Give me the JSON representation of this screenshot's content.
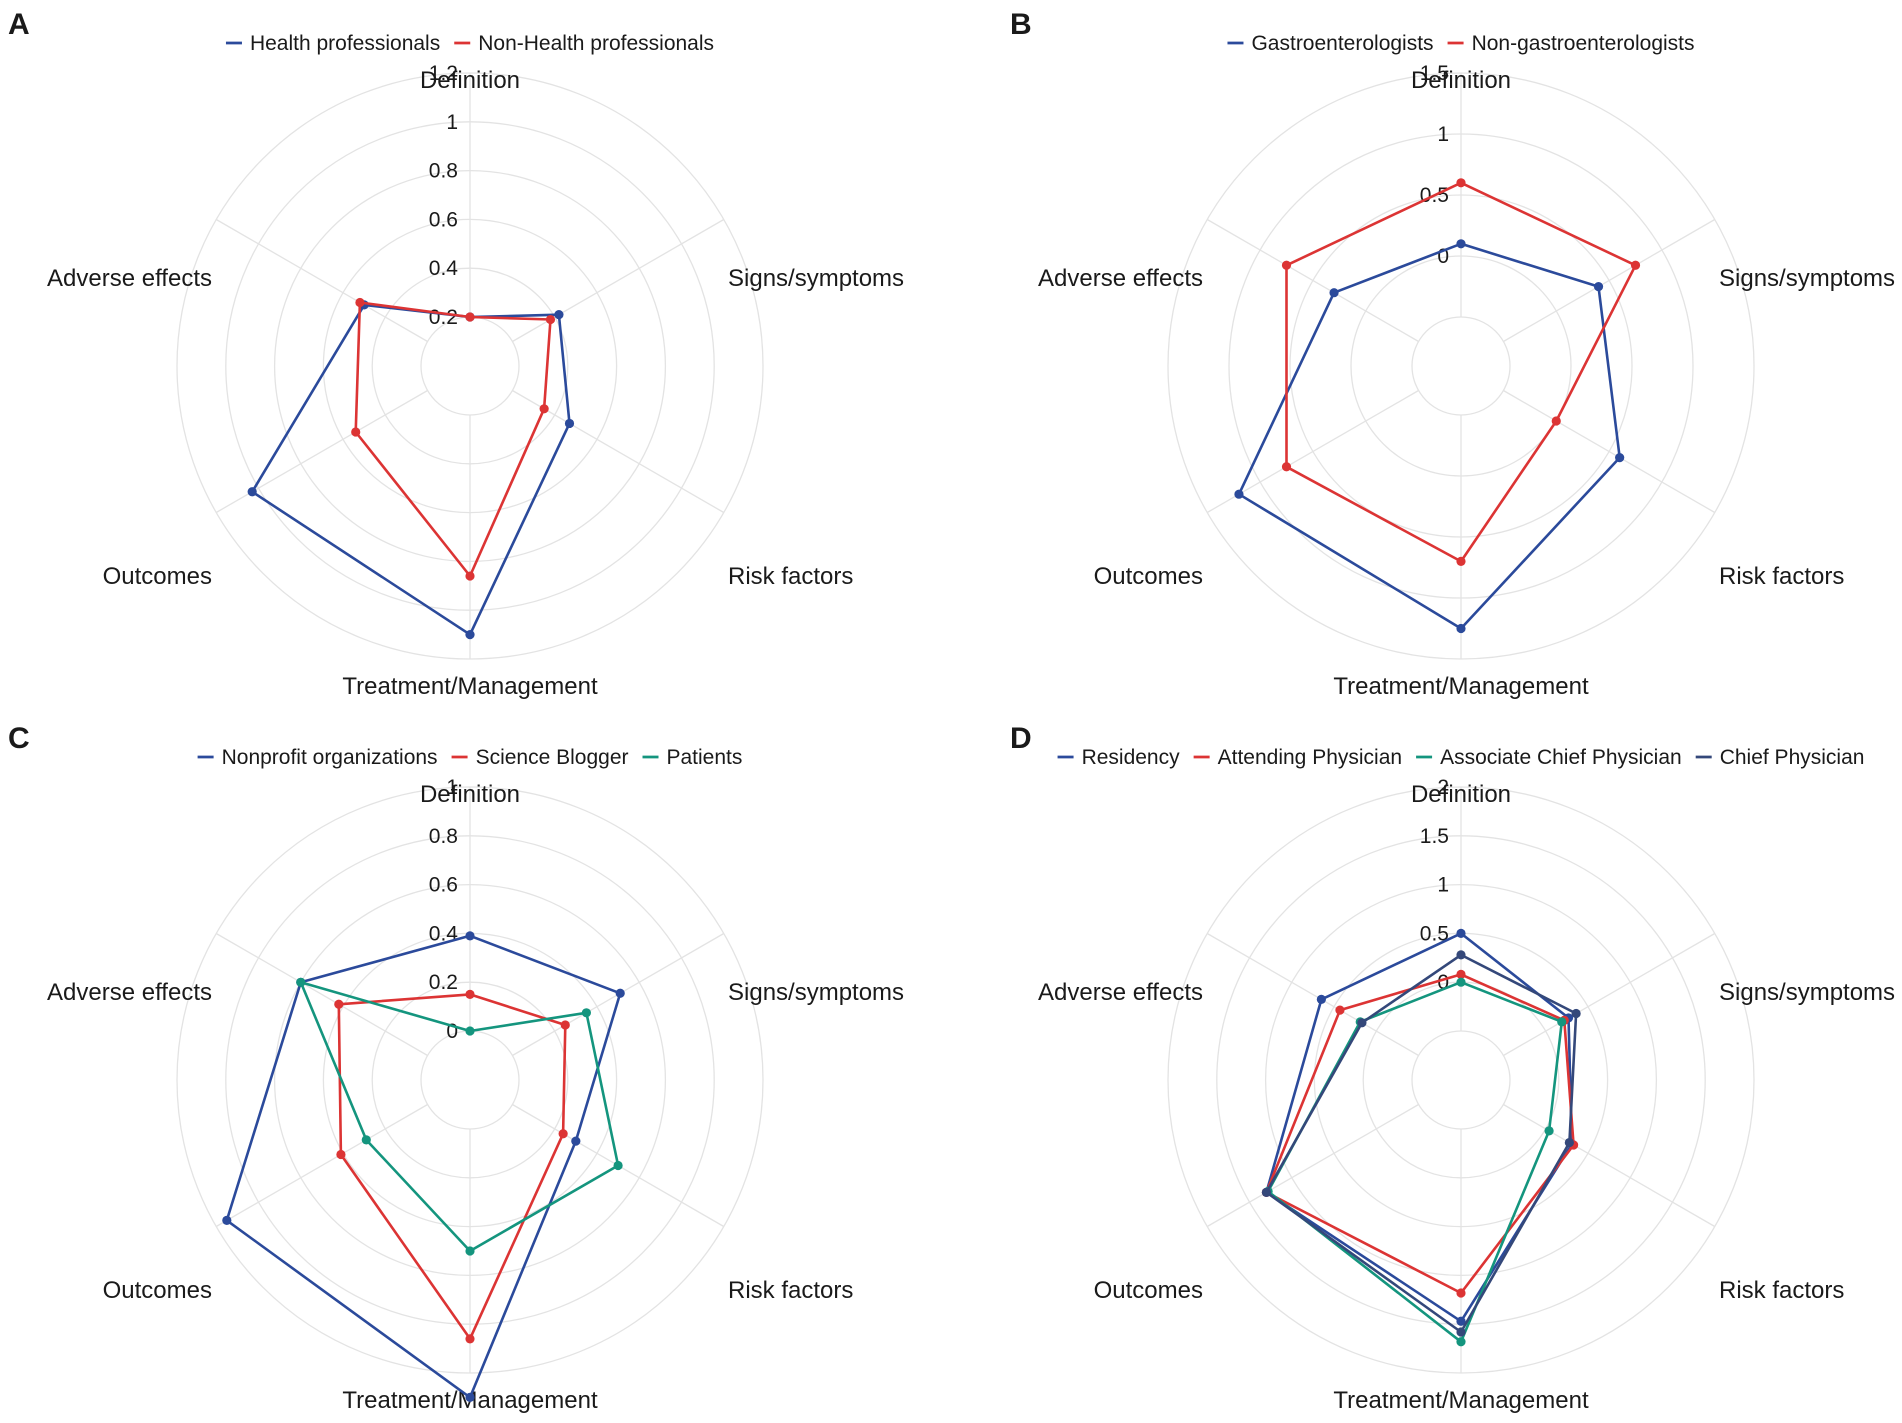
{
  "figure": {
    "background": "#ffffff",
    "grid_color": "#e3e3e3",
    "axes": [
      "Definition",
      "Signs/symptoms",
      "Risk factors",
      "Treatment/Management",
      "Outcomes",
      "Adverse effects"
    ]
  },
  "chart_data": [
    {
      "panel": "A",
      "type": "radar",
      "axes": [
        "Definition",
        "Signs/symptoms",
        "Risk factors",
        "Treatment/Management",
        "Outcomes",
        "Adverse effects"
      ],
      "rmin": 0.2,
      "rmax": 1.2,
      "ticks": [
        0.2,
        0.4,
        0.6,
        0.8,
        1,
        1.2
      ],
      "tick_labels": [
        "0.2",
        "0.4",
        "0.6",
        "0.8",
        "1",
        "1.2"
      ],
      "series": [
        {
          "name": "Health professionals",
          "color": "#2b4a9b",
          "values": [
            0.2,
            0.42,
            0.47,
            1.1,
            1.03,
            0.5
          ]
        },
        {
          "name": "Non-Health professionals",
          "color": "#dc3434",
          "values": [
            0.2,
            0.38,
            0.35,
            0.86,
            0.54,
            0.52
          ]
        }
      ]
    },
    {
      "panel": "B",
      "type": "radar",
      "axes": [
        "Definition",
        "Signs/symptoms",
        "Risk factors",
        "Treatment/Management",
        "Outcomes",
        "Adverse effects"
      ],
      "rmin": -0.5,
      "rmax": 1.5,
      "ticks": [
        0,
        0.5,
        1,
        1.5
      ],
      "tick_labels": [
        "0",
        "0.5",
        "1",
        "1.5"
      ],
      "series": [
        {
          "name": "Gastroenterologists",
          "color": "#2b4a9b",
          "values": [
            0.1,
            0.4,
            0.6,
            1.25,
            1.2,
            0.3
          ]
        },
        {
          "name": "Non-gastroenterologists",
          "color": "#dc3434",
          "values": [
            0.6,
            0.75,
            0.0,
            0.7,
            0.75,
            0.75
          ]
        }
      ]
    },
    {
      "panel": "C",
      "type": "radar",
      "axes": [
        "Definition",
        "Signs/symptoms",
        "Risk factors",
        "Treatment/Management",
        "Outcomes",
        "Adverse effects"
      ],
      "rmin": 0,
      "rmax": 1,
      "ticks": [
        0,
        0.2,
        0.4,
        0.6,
        0.8,
        1
      ],
      "tick_labels": [
        "0",
        "0.2",
        "0.4",
        "0.6",
        "0.8",
        "1"
      ],
      "series": [
        {
          "name": "Nonprofit organizations",
          "color": "#2b4a9b",
          "values": [
            0.39,
            0.51,
            0.3,
            1.1,
            0.95,
            0.6
          ]
        },
        {
          "name": "Science Blogger",
          "color": "#dc3434",
          "values": [
            0.15,
            0.25,
            0.24,
            0.86,
            0.41,
            0.42
          ]
        },
        {
          "name": "Patients",
          "color": "#14957e",
          "values": [
            0.0,
            0.35,
            0.5,
            0.5,
            0.29,
            0.6
          ]
        }
      ]
    },
    {
      "panel": "D",
      "type": "radar",
      "axes": [
        "Definition",
        "Signs/symptoms",
        "Risk factors",
        "Treatment/Management",
        "Outcomes",
        "Adverse effects"
      ],
      "rmin": -0.5,
      "rmax": 2,
      "ticks": [
        0,
        0.5,
        1,
        1.5,
        2
      ],
      "tick_labels": [
        "0",
        "0.5",
        "1",
        "1.5",
        "2"
      ],
      "series": [
        {
          "name": "Residency",
          "color": "#2b4a9b",
          "values": [
            0.5,
            0.27,
            0.31,
            1.47,
            1.3,
            0.65
          ]
        },
        {
          "name": "Attending Physician",
          "color": "#dc3434",
          "values": [
            0.08,
            0.22,
            0.33,
            1.18,
            1.3,
            0.43
          ]
        },
        {
          "name": "Associate Chief Physician",
          "color": "#14957e",
          "values": [
            0.0,
            0.19,
            0.04,
            1.68,
            1.28,
            0.19
          ]
        },
        {
          "name": "Chief Physician",
          "color": "#34487a",
          "values": [
            0.28,
            0.36,
            0.28,
            1.58,
            1.3,
            0.17
          ]
        }
      ]
    }
  ]
}
